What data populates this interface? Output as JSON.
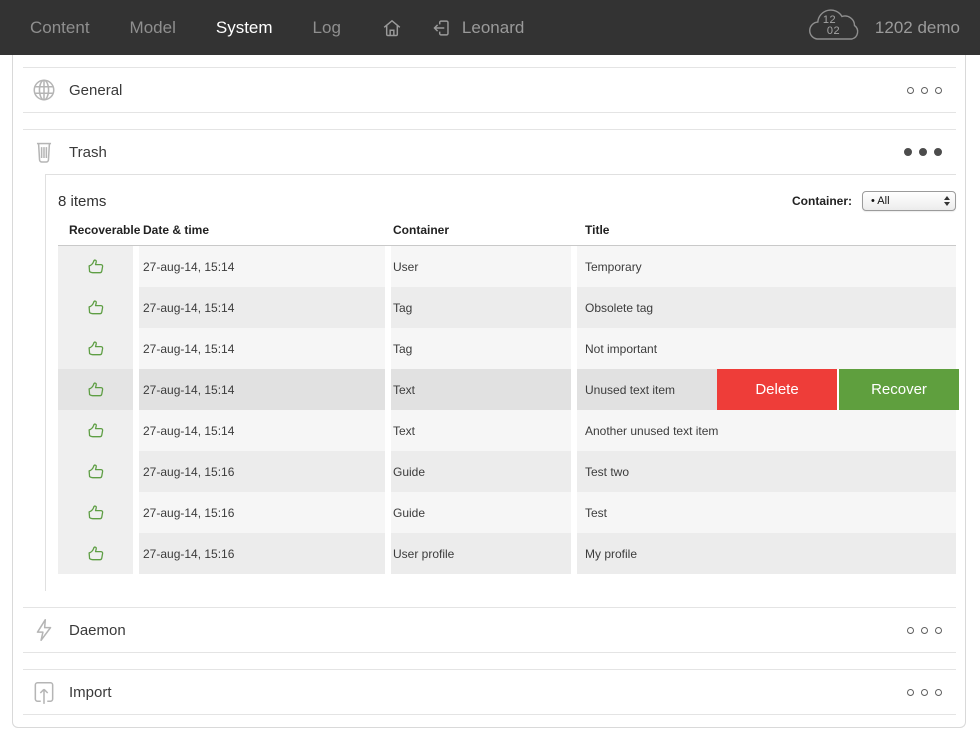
{
  "navbar": {
    "items": [
      {
        "label": "Content",
        "active": false
      },
      {
        "label": "Model",
        "active": false
      },
      {
        "label": "System",
        "active": true
      },
      {
        "label": "Log",
        "active": false
      }
    ],
    "user": "Leonard",
    "cloud_top": "12",
    "cloud_bottom": "02",
    "instance": "1202 demo"
  },
  "sections": {
    "general": {
      "label": "General"
    },
    "trash": {
      "label": "Trash"
    },
    "daemon": {
      "label": "Daemon"
    },
    "import": {
      "label": "Import"
    }
  },
  "trash_panel": {
    "count_label": "8 items",
    "filter_label": "Container:",
    "filter_value": "• All",
    "columns": [
      "Recoverable",
      "Date & time",
      "Container",
      "Title"
    ],
    "actions": {
      "delete": "Delete",
      "recover": "Recover"
    },
    "rows": [
      {
        "date": "27-aug-14, 15:14",
        "container": "User",
        "title": "Temporary",
        "hovered": false
      },
      {
        "date": "27-aug-14, 15:14",
        "container": "Tag",
        "title": "Obsolete tag",
        "hovered": false
      },
      {
        "date": "27-aug-14, 15:14",
        "container": "Tag",
        "title": "Not important",
        "hovered": false
      },
      {
        "date": "27-aug-14, 15:14",
        "container": "Text",
        "title": "Unused text item",
        "hovered": true
      },
      {
        "date": "27-aug-14, 15:14",
        "container": "Text",
        "title": "Another unused text item",
        "hovered": false
      },
      {
        "date": "27-aug-14, 15:16",
        "container": "Guide",
        "title": "Test two",
        "hovered": false
      },
      {
        "date": "27-aug-14, 15:16",
        "container": "Guide",
        "title": "Test",
        "hovered": false
      },
      {
        "date": "27-aug-14, 15:16",
        "container": "User profile",
        "title": "My profile",
        "hovered": false
      }
    ]
  },
  "colors": {
    "navbar": "#333333",
    "delete": "#ee3d39",
    "recover": "#5f9f3e",
    "thumb": "#5e9e44"
  }
}
